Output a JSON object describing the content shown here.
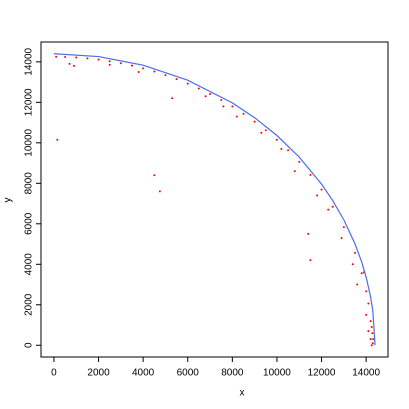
{
  "chart_data": {
    "type": "scatter",
    "xlabel": "x",
    "ylabel": "y",
    "xlim": [
      -580,
      14980
    ],
    "ylim": [
      -580,
      14980
    ],
    "xticks": [
      0,
      2000,
      4000,
      6000,
      8000,
      10000,
      12000,
      14000
    ],
    "yticks": [
      0,
      2000,
      4000,
      6000,
      8000,
      10000,
      12000,
      14000
    ],
    "series": [
      {
        "type": "scatter",
        "color": "#ff0000",
        "x": [
          100,
          500,
          1000,
          1500,
          2000,
          2500,
          3000,
          3500,
          4000,
          4500,
          5000,
          5500,
          6000,
          6500,
          7000,
          7500,
          8000,
          8500,
          9000,
          9500,
          10000,
          10500,
          11000,
          11500,
          12000,
          12500,
          13000,
          13500,
          13800,
          14000,
          14100,
          14200,
          14250,
          700,
          900,
          2500,
          3800,
          6800,
          7600,
          8200,
          9300,
          10200,
          10800,
          11800,
          12300,
          12900,
          13400,
          13600,
          14000,
          14100,
          14200,
          14300,
          150,
          4500,
          4750,
          5300,
          11400,
          11500,
          13900,
          14280,
          14320,
          14250
        ],
        "values": [
          14250,
          14241,
          14215,
          14171,
          14109,
          14029,
          13931,
          13814,
          13677,
          13521,
          13344,
          13146,
          12925,
          12681,
          12412,
          12116,
          11792,
          11437,
          11048,
          10621,
          10152,
          9634,
          9059,
          8414,
          7686,
          6842,
          5836,
          4562,
          3554,
          2659,
          2064,
          1193,
          0,
          13900,
          13800,
          13850,
          13500,
          12300,
          11800,
          11300,
          10500,
          9700,
          8600,
          7400,
          6700,
          5300,
          4000,
          3000,
          1500,
          700,
          300,
          100,
          10150,
          8400,
          7600,
          12200,
          5500,
          4200,
          3600,
          600,
          300,
          900
        ]
      },
      {
        "type": "line",
        "color": "#4a6cf0",
        "x": [
          0,
          2000,
          4000,
          6000,
          8000,
          9000,
          10000,
          11000,
          12000,
          12500,
          13000,
          13500,
          13800,
          14000,
          14200,
          14300,
          14400
        ],
        "values": [
          14400,
          14260,
          13833,
          13091,
          11973,
          11241,
          10361,
          9293,
          7960,
          7148,
          6194,
          5011,
          4115,
          3370,
          2391,
          1694,
          0
        ]
      }
    ]
  }
}
